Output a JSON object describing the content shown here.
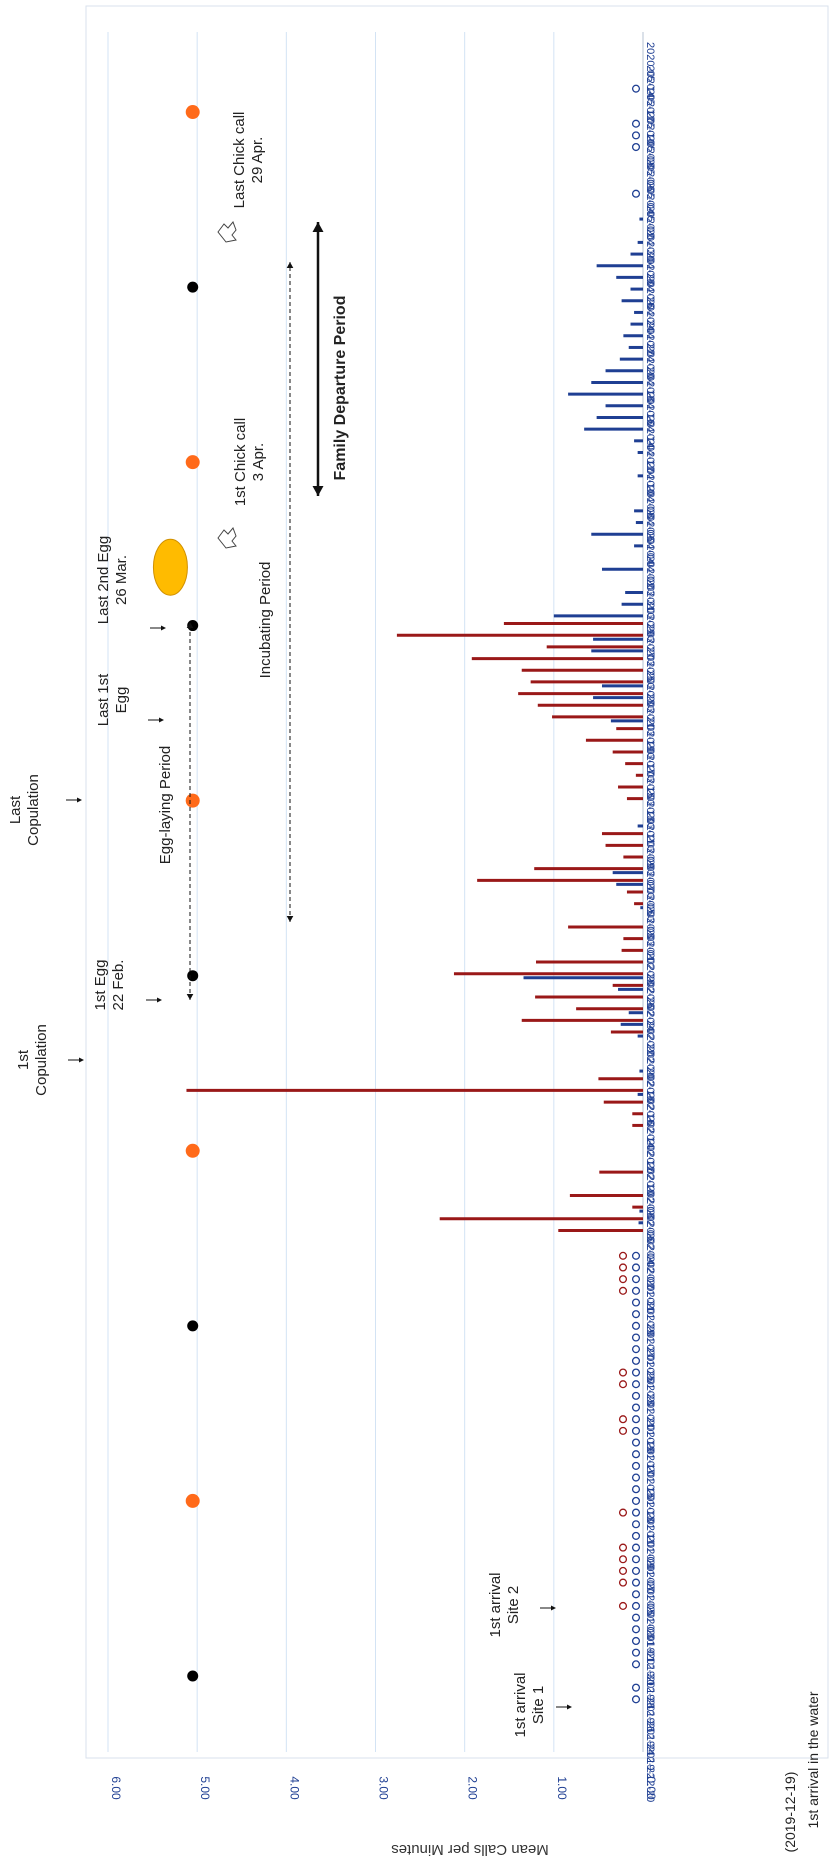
{
  "chart_data": {
    "type": "bar",
    "orientation": "rotated-90-clockwise",
    "ylabel": "Mean Calls per Minutes",
    "ylim": [
      0,
      6
    ],
    "yticks": [
      "0.00",
      "1.00",
      "2.00",
      "3.00",
      "4.00",
      "5.00",
      "6.00"
    ],
    "x_start": "2019-12-20",
    "x_end": "2020-05-14",
    "grid": true,
    "series": [
      {
        "name": "Site 1",
        "color": "#9a1818",
        "values": [
          {
            "x": "2020-02-02",
            "y": 0.95
          },
          {
            "x": "2020-02-03",
            "y": 2.28
          },
          {
            "x": "2020-02-04",
            "y": 0.12
          },
          {
            "x": "2020-02-05",
            "y": 0.82
          },
          {
            "x": "2020-02-07",
            "y": 0.49
          },
          {
            "x": "2020-02-11",
            "y": 0.12
          },
          {
            "x": "2020-02-12",
            "y": 0.12
          },
          {
            "x": "2020-02-13",
            "y": 0.44
          },
          {
            "x": "2020-02-14",
            "y": 5.12
          },
          {
            "x": "2020-02-15",
            "y": 0.5
          },
          {
            "x": "2020-02-19",
            "y": 0.36
          },
          {
            "x": "2020-02-20",
            "y": 1.36
          },
          {
            "x": "2020-02-21",
            "y": 0.75
          },
          {
            "x": "2020-02-22",
            "y": 1.21
          },
          {
            "x": "2020-02-23",
            "y": 0.34
          },
          {
            "x": "2020-02-24",
            "y": 2.12
          },
          {
            "x": "2020-02-25",
            "y": 1.2
          },
          {
            "x": "2020-02-26",
            "y": 0.24
          },
          {
            "x": "2020-02-27",
            "y": 0.22
          },
          {
            "x": "2020-02-28",
            "y": 0.84
          },
          {
            "x": "2020-03-01",
            "y": 0.1
          },
          {
            "x": "2020-03-02",
            "y": 0.18
          },
          {
            "x": "2020-03-03",
            "y": 1.86
          },
          {
            "x": "2020-03-04",
            "y": 1.22
          },
          {
            "x": "2020-03-05",
            "y": 0.22
          },
          {
            "x": "2020-03-06",
            "y": 0.42
          },
          {
            "x": "2020-03-07",
            "y": 0.46
          },
          {
            "x": "2020-03-10",
            "y": 0.18
          },
          {
            "x": "2020-03-11",
            "y": 0.28
          },
          {
            "x": "2020-03-12",
            "y": 0.08
          },
          {
            "x": "2020-03-13",
            "y": 0.2
          },
          {
            "x": "2020-03-14",
            "y": 0.34
          },
          {
            "x": "2020-03-15",
            "y": 0.64
          },
          {
            "x": "2020-03-16",
            "y": 0.3
          },
          {
            "x": "2020-03-17",
            "y": 1.02
          },
          {
            "x": "2020-03-18",
            "y": 1.18
          },
          {
            "x": "2020-03-19",
            "y": 1.4
          },
          {
            "x": "2020-03-20",
            "y": 1.26
          },
          {
            "x": "2020-03-21",
            "y": 1.36
          },
          {
            "x": "2020-03-22",
            "y": 1.92
          },
          {
            "x": "2020-03-23",
            "y": 1.08
          },
          {
            "x": "2020-03-24",
            "y": 2.76
          },
          {
            "x": "2020-03-25",
            "y": 1.56
          }
        ]
      },
      {
        "name": "Site 2",
        "color": "#1f3f93",
        "values": [
          {
            "x": "2020-02-03",
            "y": 0.05
          },
          {
            "x": "2020-02-04",
            "y": 0.04
          },
          {
            "x": "2020-02-14",
            "y": 0.06
          },
          {
            "x": "2020-02-16",
            "y": 0.04
          },
          {
            "x": "2020-02-19",
            "y": 0.06
          },
          {
            "x": "2020-02-20",
            "y": 0.25
          },
          {
            "x": "2020-02-21",
            "y": 0.16
          },
          {
            "x": "2020-02-23",
            "y": 0.28
          },
          {
            "x": "2020-02-24",
            "y": 1.34
          },
          {
            "x": "2020-03-01",
            "y": 0.03
          },
          {
            "x": "2020-03-03",
            "y": 0.3
          },
          {
            "x": "2020-03-04",
            "y": 0.34
          },
          {
            "x": "2020-03-08",
            "y": 0.06
          },
          {
            "x": "2020-03-17",
            "y": 0.36
          },
          {
            "x": "2020-03-19",
            "y": 0.56
          },
          {
            "x": "2020-03-20",
            "y": 0.46
          },
          {
            "x": "2020-03-23",
            "y": 0.58
          },
          {
            "x": "2020-03-24",
            "y": 0.56
          },
          {
            "x": "2020-03-26",
            "y": 1.0
          },
          {
            "x": "2020-03-27",
            "y": 0.24
          },
          {
            "x": "2020-03-28",
            "y": 0.2
          },
          {
            "x": "2020-03-30",
            "y": 0.46
          },
          {
            "x": "2020-04-01",
            "y": 0.1
          },
          {
            "x": "2020-04-02",
            "y": 0.58
          },
          {
            "x": "2020-04-03",
            "y": 0.08
          },
          {
            "x": "2020-04-04",
            "y": 0.1
          },
          {
            "x": "2020-04-07",
            "y": 0.06
          },
          {
            "x": "2020-04-09",
            "y": 0.06
          },
          {
            "x": "2020-04-10",
            "y": 0.1
          },
          {
            "x": "2020-04-11",
            "y": 0.66
          },
          {
            "x": "2020-04-12",
            "y": 0.52
          },
          {
            "x": "2020-04-13",
            "y": 0.42
          },
          {
            "x": "2020-04-14",
            "y": 0.84
          },
          {
            "x": "2020-04-15",
            "y": 0.58
          },
          {
            "x": "2020-04-16",
            "y": 0.42
          },
          {
            "x": "2020-04-17",
            "y": 0.26
          },
          {
            "x": "2020-04-18",
            "y": 0.16
          },
          {
            "x": "2020-04-19",
            "y": 0.22
          },
          {
            "x": "2020-04-20",
            "y": 0.14
          },
          {
            "x": "2020-04-21",
            "y": 0.1
          },
          {
            "x": "2020-04-22",
            "y": 0.24
          },
          {
            "x": "2020-04-23",
            "y": 0.14
          },
          {
            "x": "2020-04-24",
            "y": 0.3
          },
          {
            "x": "2020-04-25",
            "y": 0.52
          },
          {
            "x": "2020-04-26",
            "y": 0.14
          },
          {
            "x": "2020-04-27",
            "y": 0.06
          },
          {
            "x": "2020-04-29",
            "y": 0.04
          }
        ]
      }
    ],
    "zero_markers": [
      {
        "series": "Site 1",
        "dates": [
          "2020-01-01",
          "2020-01-03",
          "2020-01-04",
          "2020-01-05",
          "2020-01-06",
          "2020-01-09",
          "2020-01-16",
          "2020-01-17",
          "2020-01-20",
          "2020-01-21",
          "2020-01-28",
          "2020-01-29",
          "2020-01-30",
          "2020-01-31"
        ]
      },
      {
        "series": "Site 2",
        "dates": [
          "2019-12-24",
          "2019-12-25",
          "2019-12-27",
          "2019-12-28",
          "2019-12-29",
          "2019-12-30",
          "2019-12-31",
          "2020-01-01",
          "2020-01-02",
          "2020-01-03",
          "2020-01-04",
          "2020-01-05",
          "2020-01-06",
          "2020-01-07",
          "2020-01-08",
          "2020-01-09",
          "2020-01-10",
          "2020-01-11",
          "2020-01-12",
          "2020-01-13",
          "2020-01-14",
          "2020-01-15",
          "2020-01-16",
          "2020-01-17",
          "2020-01-18",
          "2020-01-19",
          "2020-01-20",
          "2020-01-21",
          "2020-01-22",
          "2020-01-23",
          "2020-01-24",
          "2020-01-25",
          "2020-01-26",
          "2020-01-27",
          "2020-01-28",
          "2020-01-29",
          "2020-01-30",
          "2020-01-31",
          "2020-05-01",
          "2020-05-05",
          "2020-05-06",
          "2020-05-07",
          "2020-05-10"
        ]
      }
    ],
    "moon_phases": [
      {
        "date": "2019-12-26",
        "phase": "new",
        "color": "#000000"
      },
      {
        "date": "2020-01-10",
        "phase": "full",
        "color": "#ff6a1a"
      },
      {
        "date": "2020-01-25",
        "phase": "new",
        "color": "#000000"
      },
      {
        "date": "2020-02-09",
        "phase": "full",
        "color": "#ff6a1a"
      },
      {
        "date": "2020-02-24",
        "phase": "new",
        "color": "#000000"
      },
      {
        "date": "2020-03-10",
        "phase": "full",
        "color": "#ff6a1a"
      },
      {
        "date": "2020-03-25",
        "phase": "new",
        "color": "#000000"
      },
      {
        "date": "2020-04-08",
        "phase": "full",
        "color": "#ff6a1a"
      },
      {
        "date": "2020-04-23",
        "phase": "new",
        "color": "#000000"
      },
      {
        "date": "2020-05-08",
        "phase": "full",
        "color": "#ff6a1a"
      }
    ],
    "annotations": {
      "first_arrival_site1": [
        "1st arrival",
        "Site 1"
      ],
      "first_arrival_site2": [
        "1st arrival",
        "Site 2"
      ],
      "first_copulation": [
        "1st",
        "Copulation"
      ],
      "first_egg": [
        "1st Egg",
        "22 Feb."
      ],
      "last_copulation": [
        "Last",
        "Copulation"
      ],
      "last_first_egg": [
        "Last 1st",
        "Egg"
      ],
      "last_second_egg": [
        "Last 2nd Egg",
        "26 Mar."
      ],
      "egg_laying_period": "Egg-laying Period",
      "incubating_period": "Incubating Period",
      "first_chick_call": [
        "1st Chick call",
        "3 Apr."
      ],
      "last_chick_call": [
        "Last Chick call",
        "29 Apr."
      ],
      "family_departure_period": "Family Departure Period",
      "water_arrival_date": "(2019-12-19)",
      "water_arrival_text": "1st arrival in the water"
    }
  }
}
